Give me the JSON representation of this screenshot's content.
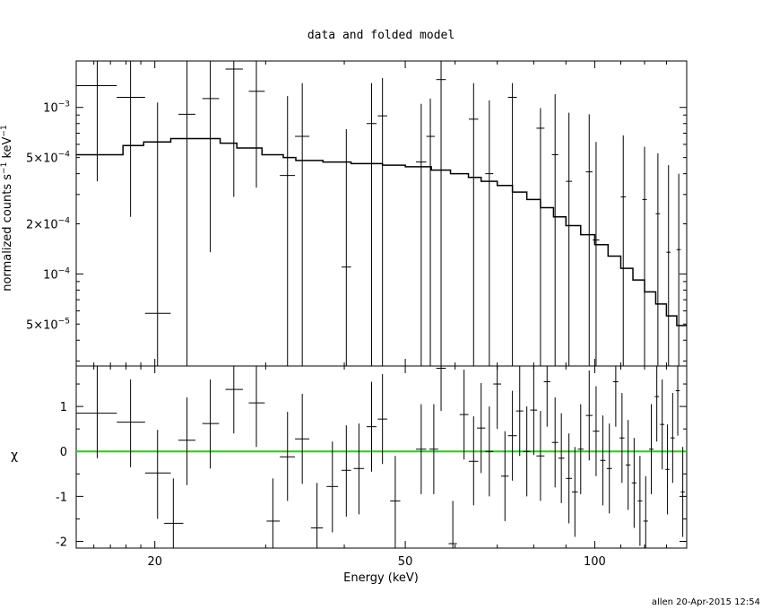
{
  "title": "data and folded model",
  "footer": "allen 20-Apr-2015 12:54",
  "colors": {
    "model": "#000000",
    "zero_line": "#22cc22",
    "data": "#000000"
  },
  "chart_data": [
    {
      "type": "scatter",
      "panel": "upper",
      "title": "data and folded model",
      "ylabel": "normalized counts s^-1 keV^-1",
      "ylabel_main": "normalized counts s",
      "ylabel_sup1": "−1",
      "ylabel_keV": " keV",
      "ylabel_sup2": "−1",
      "xscale": "log",
      "yscale": "log",
      "xlim": [
        15,
        140
      ],
      "ylim": [
        2.8e-05,
        0.0019
      ],
      "yticks": [
        {
          "value": 0.001,
          "mant": "10",
          "exp": "−3"
        },
        {
          "value": 0.0005,
          "mant": "5×10",
          "exp": "−4"
        },
        {
          "value": 0.0002,
          "mant": "2×10",
          "exp": "−4"
        },
        {
          "value": 0.0001,
          "mant": "10",
          "exp": "−4"
        },
        {
          "value": 5e-05,
          "mant": "5×10",
          "exp": "−5"
        }
      ],
      "data_points": [
        {
          "x": 16.2,
          "xlo": 15.0,
          "xhi": 17.4,
          "y": 0.00135,
          "ylo": 0.00036,
          "yhi": 0.0019
        },
        {
          "x": 18.3,
          "xlo": 17.4,
          "xhi": 19.3,
          "y": 0.00115,
          "ylo": 0.00022,
          "yhi": 0.0019
        },
        {
          "x": 20.2,
          "xlo": 19.3,
          "xhi": 21.2,
          "y": 5.8e-05,
          "ylo": 2.8e-05,
          "yhi": 0.00107
        },
        {
          "x": 22.5,
          "xlo": 21.8,
          "xhi": 23.2,
          "y": 0.00091,
          "ylo": 2.8e-05,
          "yhi": 0.0019
        },
        {
          "x": 24.5,
          "xlo": 23.8,
          "xhi": 25.3,
          "y": 0.00113,
          "ylo": 0.000135,
          "yhi": 0.0019
        },
        {
          "x": 26.7,
          "xlo": 25.9,
          "xhi": 27.6,
          "y": 0.0017,
          "ylo": 0.00029,
          "yhi": 0.0019
        },
        {
          "x": 29.0,
          "xlo": 28.2,
          "xhi": 29.9,
          "y": 0.00125,
          "ylo": 0.00033,
          "yhi": 0.0019
        },
        {
          "x": 32.5,
          "xlo": 31.6,
          "xhi": 33.4,
          "y": 0.00039,
          "ylo": 2.8e-05,
          "yhi": 0.00117
        },
        {
          "x": 34.3,
          "xlo": 33.4,
          "xhi": 35.2,
          "y": 0.00067,
          "ylo": 2.8e-05,
          "yhi": 0.0014
        },
        {
          "x": 40.3,
          "xlo": 39.6,
          "xhi": 41.0,
          "y": 0.00011,
          "ylo": 2.8e-05,
          "yhi": 0.00074
        },
        {
          "x": 44.2,
          "xlo": 43.4,
          "xhi": 45.0,
          "y": 0.0008,
          "ylo": 2.8e-05,
          "yhi": 0.0014
        },
        {
          "x": 46.0,
          "xlo": 45.2,
          "xhi": 46.8,
          "y": 0.00089,
          "ylo": 2.8e-05,
          "yhi": 0.0015
        },
        {
          "x": 53.0,
          "xlo": 52.0,
          "xhi": 54.0,
          "y": 0.00047,
          "ylo": 2.8e-05,
          "yhi": 0.00105
        },
        {
          "x": 54.8,
          "xlo": 54.0,
          "xhi": 55.7,
          "y": 0.00067,
          "ylo": 2.8e-05,
          "yhi": 0.00113
        },
        {
          "x": 57.0,
          "xlo": 56.0,
          "xhi": 58.0,
          "y": 0.00147,
          "ylo": 2.8e-05,
          "yhi": 0.0019
        },
        {
          "x": 64.2,
          "xlo": 63.1,
          "xhi": 65.3,
          "y": 0.00085,
          "ylo": 2.8e-05,
          "yhi": 0.0014
        },
        {
          "x": 68.0,
          "xlo": 67.0,
          "xhi": 69.0,
          "y": 0.0004,
          "ylo": 2.8e-05,
          "yhi": 0.0011
        },
        {
          "x": 74.0,
          "xlo": 72.8,
          "xhi": 75.2,
          "y": 0.00115,
          "ylo": 2.8e-05,
          "yhi": 0.0014
        },
        {
          "x": 82.0,
          "xlo": 80.8,
          "xhi": 83.2,
          "y": 0.00075,
          "ylo": 2.8e-05,
          "yhi": 0.00099
        },
        {
          "x": 86.5,
          "xlo": 85.5,
          "xhi": 87.5,
          "y": 0.00052,
          "ylo": 2.8e-05,
          "yhi": 0.0012
        },
        {
          "x": 91.0,
          "xlo": 90.0,
          "xhi": 92.0,
          "y": 0.00036,
          "ylo": 2.8e-05,
          "yhi": 0.00093
        },
        {
          "x": 98.0,
          "xlo": 96.8,
          "xhi": 99.2,
          "y": 0.00041,
          "ylo": 2.8e-05,
          "yhi": 0.00091
        },
        {
          "x": 100.5,
          "xlo": 99.3,
          "xhi": 101.7,
          "y": 0.00016,
          "ylo": 2.8e-05,
          "yhi": 0.00062
        },
        {
          "x": 111.0,
          "xlo": 110.0,
          "xhi": 112.0,
          "y": 0.00029,
          "ylo": 2.8e-05,
          "yhi": 0.00068
        },
        {
          "x": 120.0,
          "xlo": 119.0,
          "xhi": 121.0,
          "y": 0.00028,
          "ylo": 2.8e-05,
          "yhi": 0.00058
        },
        {
          "x": 126.0,
          "xlo": 125.0,
          "xhi": 127.0,
          "y": 0.00023,
          "ylo": 2.8e-05,
          "yhi": 0.00053
        },
        {
          "x": 131.0,
          "xlo": 130.0,
          "xhi": 132.0,
          "y": 0.000135,
          "ylo": 2.8e-05,
          "yhi": 0.00045
        },
        {
          "x": 136.0,
          "xlo": 135.0,
          "xhi": 137.0,
          "y": 0.00014,
          "ylo": 2.8e-05,
          "yhi": 0.0004
        }
      ],
      "model_step": [
        {
          "x": 15.0,
          "y": 0.00052
        },
        {
          "x": 17.8,
          "y": 0.00059
        },
        {
          "x": 19.2,
          "y": 0.00062
        },
        {
          "x": 21.2,
          "y": 0.00065
        },
        {
          "x": 25.4,
          "y": 0.00061
        },
        {
          "x": 27.0,
          "y": 0.00057
        },
        {
          "x": 29.6,
          "y": 0.00052
        },
        {
          "x": 32.0,
          "y": 0.0005
        },
        {
          "x": 33.5,
          "y": 0.00048
        },
        {
          "x": 37.0,
          "y": 0.00047
        },
        {
          "x": 41.0,
          "y": 0.00046
        },
        {
          "x": 46.0,
          "y": 0.00045
        },
        {
          "x": 50.0,
          "y": 0.00044
        },
        {
          "x": 55.0,
          "y": 0.00042
        },
        {
          "x": 59.0,
          "y": 0.0004
        },
        {
          "x": 63.0,
          "y": 0.00038
        },
        {
          "x": 66.0,
          "y": 0.00036
        },
        {
          "x": 70.0,
          "y": 0.00034
        },
        {
          "x": 74.0,
          "y": 0.00031
        },
        {
          "x": 78.0,
          "y": 0.00028
        },
        {
          "x": 82.0,
          "y": 0.00025
        },
        {
          "x": 86.0,
          "y": 0.00022
        },
        {
          "x": 90.0,
          "y": 0.000195
        },
        {
          "x": 95.0,
          "y": 0.000172
        },
        {
          "x": 100.0,
          "y": 0.00015
        },
        {
          "x": 105.0,
          "y": 0.000128
        },
        {
          "x": 110.0,
          "y": 0.000108
        },
        {
          "x": 115.0,
          "y": 9.2e-05
        },
        {
          "x": 120.0,
          "y": 7.8e-05
        },
        {
          "x": 125.0,
          "y": 6.6e-05
        },
        {
          "x": 130.0,
          "y": 5.6e-05
        },
        {
          "x": 135.0,
          "y": 4.9e-05
        },
        {
          "x": 140.0,
          "y": 4.9e-05
        }
      ]
    },
    {
      "type": "scatter",
      "panel": "lower",
      "ylabel": "χ",
      "xlabel": "Energy (keV)",
      "xscale": "log",
      "xlim": [
        15,
        140
      ],
      "ylim": [
        -2.15,
        1.9
      ],
      "yticks": [
        1,
        0,
        -1,
        -2
      ],
      "xticks": [
        20,
        50,
        100
      ],
      "zero_line": 0,
      "data_points": [
        {
          "x": 16.2,
          "xlo": 15.0,
          "xhi": 17.4,
          "y": 0.85,
          "ylo": -0.15,
          "yhi": 1.9
        },
        {
          "x": 18.3,
          "xlo": 17.4,
          "xhi": 19.3,
          "y": 0.65,
          "ylo": -0.35,
          "yhi": 1.6
        },
        {
          "x": 20.2,
          "xlo": 19.3,
          "xhi": 21.2,
          "y": -0.48,
          "ylo": -1.5,
          "yhi": 0.48
        },
        {
          "x": 21.4,
          "xlo": 20.7,
          "xhi": 22.2,
          "y": -1.6,
          "ylo": -2.15,
          "yhi": -0.6
        },
        {
          "x": 22.5,
          "xlo": 21.8,
          "xhi": 23.2,
          "y": 0.25,
          "ylo": -0.75,
          "yhi": 1.2
        },
        {
          "x": 24.5,
          "xlo": 23.8,
          "xhi": 25.3,
          "y": 0.62,
          "ylo": -0.38,
          "yhi": 1.6
        },
        {
          "x": 26.7,
          "xlo": 25.9,
          "xhi": 27.6,
          "y": 1.38,
          "ylo": 0.4,
          "yhi": 1.9
        },
        {
          "x": 29.0,
          "xlo": 28.2,
          "xhi": 29.9,
          "y": 1.08,
          "ylo": 0.1,
          "yhi": 1.9
        },
        {
          "x": 30.8,
          "xlo": 30.1,
          "xhi": 31.6,
          "y": -1.55,
          "ylo": -2.15,
          "yhi": -0.6
        },
        {
          "x": 32.5,
          "xlo": 31.6,
          "xhi": 33.4,
          "y": -0.12,
          "ylo": -1.1,
          "yhi": 0.88
        },
        {
          "x": 34.3,
          "xlo": 33.4,
          "xhi": 35.2,
          "y": 0.28,
          "ylo": -0.72,
          "yhi": 1.28
        },
        {
          "x": 36.2,
          "xlo": 35.4,
          "xhi": 37.0,
          "y": -1.7,
          "ylo": -2.15,
          "yhi": -0.7
        },
        {
          "x": 38.3,
          "xlo": 37.5,
          "xhi": 39.1,
          "y": -0.78,
          "ylo": -1.8,
          "yhi": 0.22
        },
        {
          "x": 40.3,
          "xlo": 39.6,
          "xhi": 41.0,
          "y": -0.42,
          "ylo": -1.45,
          "yhi": 0.58
        },
        {
          "x": 42.2,
          "xlo": 41.4,
          "xhi": 43.0,
          "y": -0.38,
          "ylo": -1.4,
          "yhi": 0.62
        },
        {
          "x": 44.2,
          "xlo": 43.4,
          "xhi": 45.0,
          "y": 0.55,
          "ylo": -0.45,
          "yhi": 1.55
        },
        {
          "x": 46.0,
          "xlo": 45.2,
          "xhi": 46.8,
          "y": 0.72,
          "ylo": -0.28,
          "yhi": 1.72
        },
        {
          "x": 48.2,
          "xlo": 47.3,
          "xhi": 49.1,
          "y": -1.1,
          "ylo": -2.15,
          "yhi": -0.1
        },
        {
          "x": 53.0,
          "xlo": 52.0,
          "xhi": 54.0,
          "y": 0.05,
          "ylo": -0.95,
          "yhi": 1.05
        },
        {
          "x": 55.5,
          "xlo": 54.6,
          "xhi": 56.4,
          "y": 0.05,
          "ylo": -0.95,
          "yhi": 1.05
        },
        {
          "x": 57.0,
          "xlo": 56.0,
          "xhi": 58.0,
          "y": 1.85,
          "ylo": 0.9,
          "yhi": 1.9
        },
        {
          "x": 59.5,
          "xlo": 58.6,
          "xhi": 60.4,
          "y": -2.05,
          "ylo": -2.15,
          "yhi": -1.1
        },
        {
          "x": 62.0,
          "xlo": 61.0,
          "xhi": 63.0,
          "y": 0.82,
          "ylo": -0.18,
          "yhi": 1.82
        },
        {
          "x": 64.2,
          "xlo": 63.1,
          "xhi": 65.3,
          "y": -0.22,
          "ylo": -1.2,
          "yhi": 0.78
        },
        {
          "x": 66.0,
          "xlo": 65.0,
          "xhi": 67.0,
          "y": 0.52,
          "ylo": -0.48,
          "yhi": 1.52
        },
        {
          "x": 68.0,
          "xlo": 67.0,
          "xhi": 69.0,
          "y": 0.0,
          "ylo": -1.0,
          "yhi": 1.0
        },
        {
          "x": 70.0,
          "xlo": 69.0,
          "xhi": 71.0,
          "y": 1.5,
          "ylo": 0.5,
          "yhi": 1.9
        },
        {
          "x": 72.0,
          "xlo": 71.0,
          "xhi": 73.0,
          "y": -0.55,
          "ylo": -1.55,
          "yhi": 0.45
        },
        {
          "x": 74.0,
          "xlo": 72.8,
          "xhi": 75.2,
          "y": 0.35,
          "ylo": -0.65,
          "yhi": 1.35
        },
        {
          "x": 76.0,
          "xlo": 75.0,
          "xhi": 77.0,
          "y": 0.9,
          "ylo": -0.1,
          "yhi": 1.9
        },
        {
          "x": 78.0,
          "xlo": 77.0,
          "xhi": 79.0,
          "y": 0.0,
          "ylo": -1.0,
          "yhi": 1.0
        },
        {
          "x": 80.0,
          "xlo": 79.0,
          "xhi": 81.0,
          "y": 0.92,
          "ylo": -0.08,
          "yhi": 1.9
        },
        {
          "x": 82.0,
          "xlo": 80.8,
          "xhi": 83.2,
          "y": -0.1,
          "ylo": -1.1,
          "yhi": 0.9
        },
        {
          "x": 84.0,
          "xlo": 83.0,
          "xhi": 85.0,
          "y": 1.55,
          "ylo": 0.55,
          "yhi": 1.9
        },
        {
          "x": 86.5,
          "xlo": 85.5,
          "xhi": 87.5,
          "y": 0.2,
          "ylo": -0.8,
          "yhi": 1.2
        },
        {
          "x": 88.5,
          "xlo": 87.5,
          "xhi": 89.5,
          "y": -0.15,
          "ylo": -1.15,
          "yhi": 0.85
        },
        {
          "x": 91.0,
          "xlo": 90.0,
          "xhi": 92.0,
          "y": -0.6,
          "ylo": -1.6,
          "yhi": 0.4
        },
        {
          "x": 93.0,
          "xlo": 92.0,
          "xhi": 94.0,
          "y": -0.9,
          "ylo": -1.9,
          "yhi": 0.1
        },
        {
          "x": 95.0,
          "xlo": 94.0,
          "xhi": 96.0,
          "y": 0.05,
          "ylo": -0.95,
          "yhi": 1.05
        },
        {
          "x": 98.0,
          "xlo": 96.8,
          "xhi": 99.2,
          "y": 0.8,
          "ylo": -0.2,
          "yhi": 1.8
        },
        {
          "x": 100.5,
          "xlo": 99.3,
          "xhi": 101.7,
          "y": 0.45,
          "ylo": -0.55,
          "yhi": 1.45
        },
        {
          "x": 103.0,
          "xlo": 102.0,
          "xhi": 104.0,
          "y": -0.2,
          "ylo": -1.2,
          "yhi": 0.8
        },
        {
          "x": 105.5,
          "xlo": 104.5,
          "xhi": 106.5,
          "y": -0.38,
          "ylo": -1.38,
          "yhi": 0.62
        },
        {
          "x": 108.0,
          "xlo": 107.0,
          "xhi": 109.0,
          "y": 1.55,
          "ylo": 0.55,
          "yhi": 1.9
        },
        {
          "x": 110.5,
          "xlo": 109.5,
          "xhi": 111.5,
          "y": 0.3,
          "ylo": -0.7,
          "yhi": 1.3
        },
        {
          "x": 113.0,
          "xlo": 112.0,
          "xhi": 114.0,
          "y": -0.3,
          "ylo": -1.3,
          "yhi": 0.7
        },
        {
          "x": 115.5,
          "xlo": 114.5,
          "xhi": 116.5,
          "y": -0.7,
          "ylo": -1.7,
          "yhi": 0.3
        },
        {
          "x": 118.0,
          "xlo": 117.0,
          "xhi": 119.0,
          "y": -1.1,
          "ylo": -2.1,
          "yhi": -0.1
        },
        {
          "x": 120.5,
          "xlo": 119.5,
          "xhi": 121.5,
          "y": -1.55,
          "ylo": -2.15,
          "yhi": -0.55
        },
        {
          "x": 123.0,
          "xlo": 122.0,
          "xhi": 124.0,
          "y": 0.05,
          "ylo": -0.95,
          "yhi": 1.05
        },
        {
          "x": 125.5,
          "xlo": 124.5,
          "xhi": 126.5,
          "y": 1.22,
          "ylo": 0.22,
          "yhi": 1.9
        },
        {
          "x": 128.0,
          "xlo": 127.0,
          "xhi": 129.0,
          "y": 0.6,
          "ylo": -0.4,
          "yhi": 1.6
        },
        {
          "x": 130.5,
          "xlo": 129.5,
          "xhi": 131.5,
          "y": -0.4,
          "ylo": -1.4,
          "yhi": 0.6
        },
        {
          "x": 133.0,
          "xlo": 132.0,
          "xhi": 134.0,
          "y": 0.3,
          "ylo": -0.7,
          "yhi": 1.3
        },
        {
          "x": 135.5,
          "xlo": 134.5,
          "xhi": 136.5,
          "y": 1.35,
          "ylo": 0.35,
          "yhi": 1.9
        },
        {
          "x": 138.0,
          "xlo": 137.0,
          "xhi": 139.0,
          "y": -0.9,
          "ylo": -1.9,
          "yhi": 0.1
        }
      ]
    }
  ]
}
